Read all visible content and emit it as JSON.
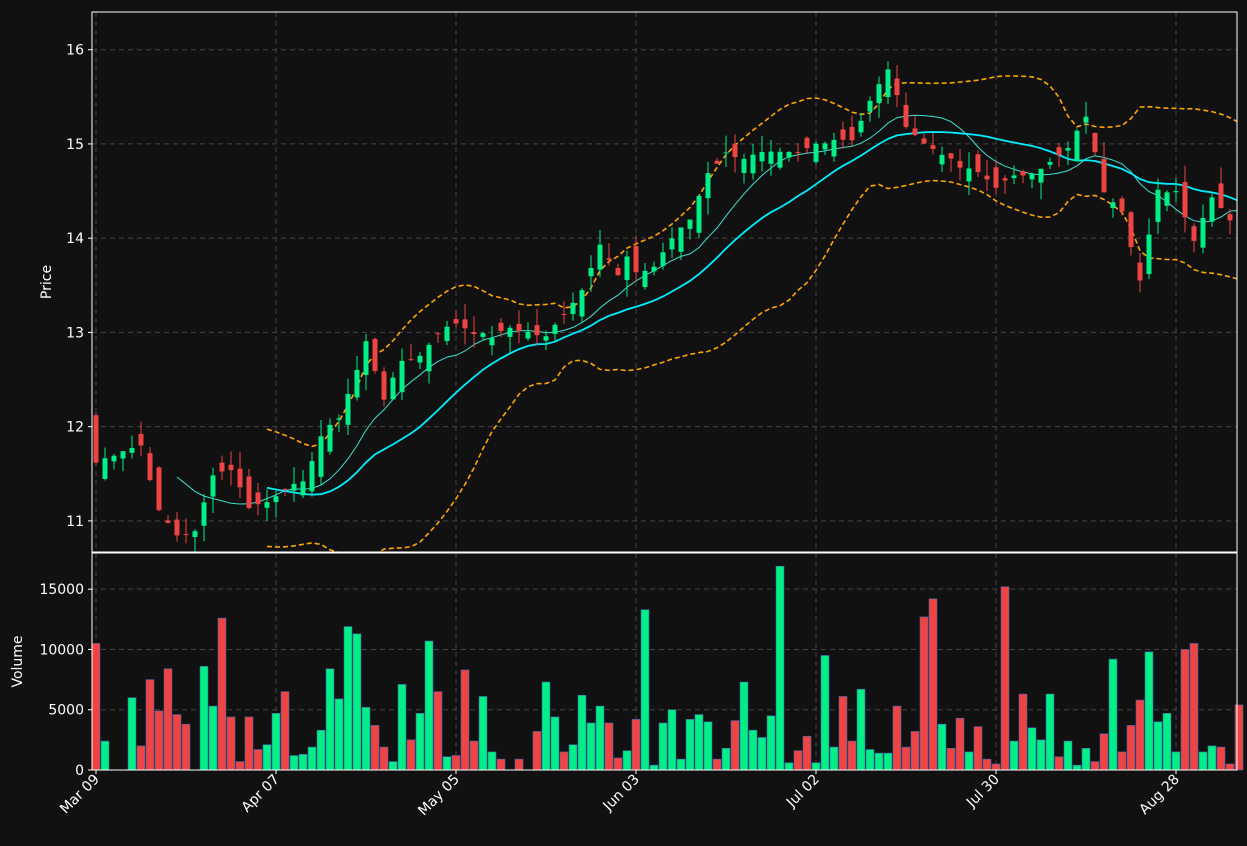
{
  "chart_data": {
    "type": "candlestick",
    "panels": [
      "price",
      "volume"
    ],
    "price_panel": {
      "ylabel": "Price",
      "ylim": [
        10.67,
        16.4
      ],
      "yticks": [
        11,
        12,
        13,
        14,
        15,
        16
      ],
      "grid": true
    },
    "volume_panel": {
      "ylabel": "Volume",
      "ylim": [
        0,
        18000
      ],
      "yticks": [
        0,
        5000,
        10000,
        15000
      ],
      "grid": true
    },
    "x_axis": {
      "tick_labels": [
        "Mar 09",
        "Apr 07",
        "May 05",
        "Jun 03",
        "Jul 02",
        "Jul 30",
        "Aug 28"
      ],
      "tick_index": [
        0,
        20,
        40,
        60,
        80,
        100,
        120
      ]
    },
    "colors": {
      "background": "#111111",
      "up": "#00ee88",
      "down": "#ee4444",
      "ma_fast": "#40e0d0",
      "ma_slow": "#00eeff",
      "bollinger": "#ffa500",
      "grid": "#444444",
      "frame": "#ffffff"
    },
    "series": [
      {
        "name": "OHLC candles",
        "role": "candles"
      },
      {
        "name": "MA10",
        "role": "moving-average-fast"
      },
      {
        "name": "MA20",
        "role": "moving-average-slow"
      },
      {
        "name": "Bollinger upper",
        "role": "band-upper"
      },
      {
        "name": "Bollinger lower",
        "role": "band-lower"
      },
      {
        "name": "Volume",
        "role": "volume"
      }
    ],
    "close_anchors": [
      [
        0,
        11.62
      ],
      [
        3,
        11.75
      ],
      [
        5,
        11.8
      ],
      [
        7,
        11.1
      ],
      [
        9,
        10.85
      ],
      [
        11,
        10.88
      ],
      [
        13,
        11.5
      ],
      [
        15,
        11.55
      ],
      [
        17,
        11.15
      ],
      [
        19,
        11.2
      ],
      [
        21,
        11.35
      ],
      [
        23,
        11.4
      ],
      [
        25,
        11.9
      ],
      [
        27,
        12.1
      ],
      [
        29,
        12.6
      ],
      [
        30,
        12.9
      ],
      [
        32,
        12.3
      ],
      [
        34,
        12.7
      ],
      [
        36,
        12.75
      ],
      [
        38,
        13.0
      ],
      [
        40,
        13.1
      ],
      [
        42,
        13.0
      ],
      [
        44,
        12.95
      ],
      [
        46,
        13.05
      ],
      [
        48,
        13.0
      ],
      [
        50,
        12.95
      ],
      [
        52,
        13.2
      ],
      [
        54,
        13.45
      ],
      [
        56,
        13.95
      ],
      [
        58,
        13.6
      ],
      [
        59,
        13.8
      ],
      [
        60,
        13.62
      ],
      [
        62,
        13.7
      ],
      [
        64,
        14.0
      ],
      [
        66,
        14.2
      ],
      [
        68,
        14.7
      ],
      [
        70,
        14.9
      ],
      [
        72,
        14.85
      ],
      [
        74,
        14.9
      ],
      [
        76,
        14.9
      ],
      [
        78,
        14.9
      ],
      [
        80,
        15.0
      ],
      [
        82,
        15.05
      ],
      [
        84,
        15.05
      ],
      [
        86,
        15.45
      ],
      [
        88,
        15.8
      ],
      [
        90,
        15.2
      ],
      [
        92,
        15.0
      ],
      [
        94,
        14.9
      ],
      [
        96,
        14.75
      ],
      [
        98,
        14.7
      ],
      [
        100,
        14.55
      ],
      [
        102,
        14.65
      ],
      [
        104,
        14.7
      ],
      [
        106,
        14.8
      ],
      [
        108,
        14.95
      ],
      [
        110,
        15.3
      ],
      [
        112,
        14.5
      ],
      [
        114,
        14.3
      ],
      [
        116,
        13.55
      ],
      [
        118,
        14.5
      ],
      [
        120,
        14.5
      ],
      [
        122,
        13.98
      ],
      [
        124,
        14.45
      ],
      [
        126,
        14.2
      ],
      [
        127,
        14.1
      ]
    ],
    "band_start": 19,
    "ma_fast_start": 9,
    "ma_slow_start": 19,
    "candle_count": 128,
    "volume": [
      10500,
      2400,
      0,
      0,
      6000,
      2000,
      7500,
      4900,
      8400,
      4600,
      3800,
      0,
      8600,
      5300,
      12600,
      4400,
      700,
      4400,
      1700,
      2100,
      4700,
      6500,
      1200,
      1300,
      1900,
      3300,
      8400,
      5900,
      11900,
      11300,
      5200,
      3700,
      1900,
      700,
      7100,
      2500,
      4700,
      10700,
      6500,
      1100,
      1200,
      8300,
      2400,
      6100,
      1500,
      900,
      0,
      900,
      0,
      3200,
      7300,
      4400,
      1500,
      2100,
      6200,
      3900,
      5300,
      3900,
      1000,
      1600,
      4200,
      13300,
      400,
      3900,
      5000,
      900,
      4200,
      4600,
      4000,
      900,
      1800,
      4100,
      7300,
      3300,
      2700,
      4500,
      16900,
      600,
      1600,
      2800,
      600,
      9500,
      1900,
      6100,
      2400,
      6700,
      1700,
      1400,
      1400,
      5300,
      1900,
      3200,
      12700,
      14200,
      3800,
      1800,
      4300,
      1500,
      3600,
      900,
      500,
      15200,
      2400,
      6300,
      3500,
      2500,
      6300,
      1100,
      2400,
      400,
      1800,
      700,
      3000,
      9200,
      1500,
      3700,
      5800,
      9800,
      4000,
      4700,
      1500,
      10000,
      10500,
      1500,
      2000,
      1900,
      500,
      5400
    ]
  }
}
